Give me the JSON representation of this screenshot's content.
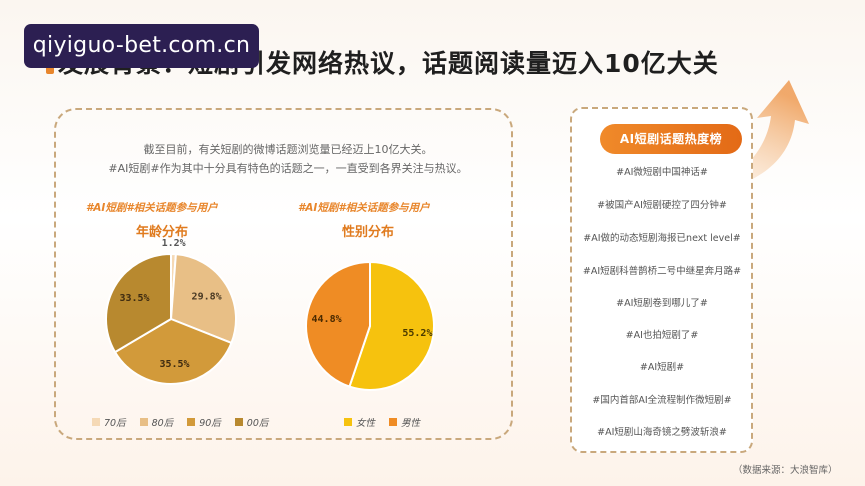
{
  "watermark": "qiyiguo-bet.com.cn",
  "title": "发展背景：短剧引发网络热议，话题阅读量迈入10亿大关",
  "intro": {
    "line1": "截至目前，有关短剧的微博话题浏览量已经迈上10亿大关。",
    "line2": "#AI短剧#作为其中十分具有特色的话题之一，一直受到各界关注与热议。"
  },
  "colors": {
    "accent": "#e8862c",
    "age_70s": "#f5d9b5",
    "age_80s": "#e8bf86",
    "age_90s": "#d29a3a",
    "age_00s": "#b8892f",
    "female": "#f6c20e",
    "male": "#ef8c24"
  },
  "chart_data": [
    {
      "type": "pie",
      "tag": "#AI短剧#相关话题参与用户",
      "title": "年龄分布",
      "categories": [
        "70后",
        "80后",
        "90后",
        "00后"
      ],
      "values": [
        1.2,
        29.8,
        35.5,
        33.5
      ],
      "labels": [
        "1.2%",
        "29.8%",
        "35.5%",
        "33.5%"
      ],
      "legend_position": "bottom"
    },
    {
      "type": "pie",
      "tag": "#AI短剧#相关话题参与用户",
      "title": "性别分布",
      "categories": [
        "女性",
        "男性"
      ],
      "values": [
        55.2,
        44.8
      ],
      "labels": [
        "55.2%",
        "44.8%"
      ],
      "legend_position": "bottom"
    }
  ],
  "hot_list": {
    "title": "AI短剧话题热度榜",
    "items": [
      "#AI微短剧中国神话#",
      "#被国产AI短剧硬控了四分钟#",
      "#AI做的动态短剧海报已next level#",
      "#AI短剧科普鹊桥二号中继星奔月路#",
      "#AI短剧卷到哪儿了#",
      "#AI也拍短剧了#",
      "#AI短剧#",
      "#国内首部AI全流程制作微短剧#",
      "#AI短剧山海奇镜之劈波斩浪#"
    ]
  },
  "source": "（数据来源：大浪智库）"
}
